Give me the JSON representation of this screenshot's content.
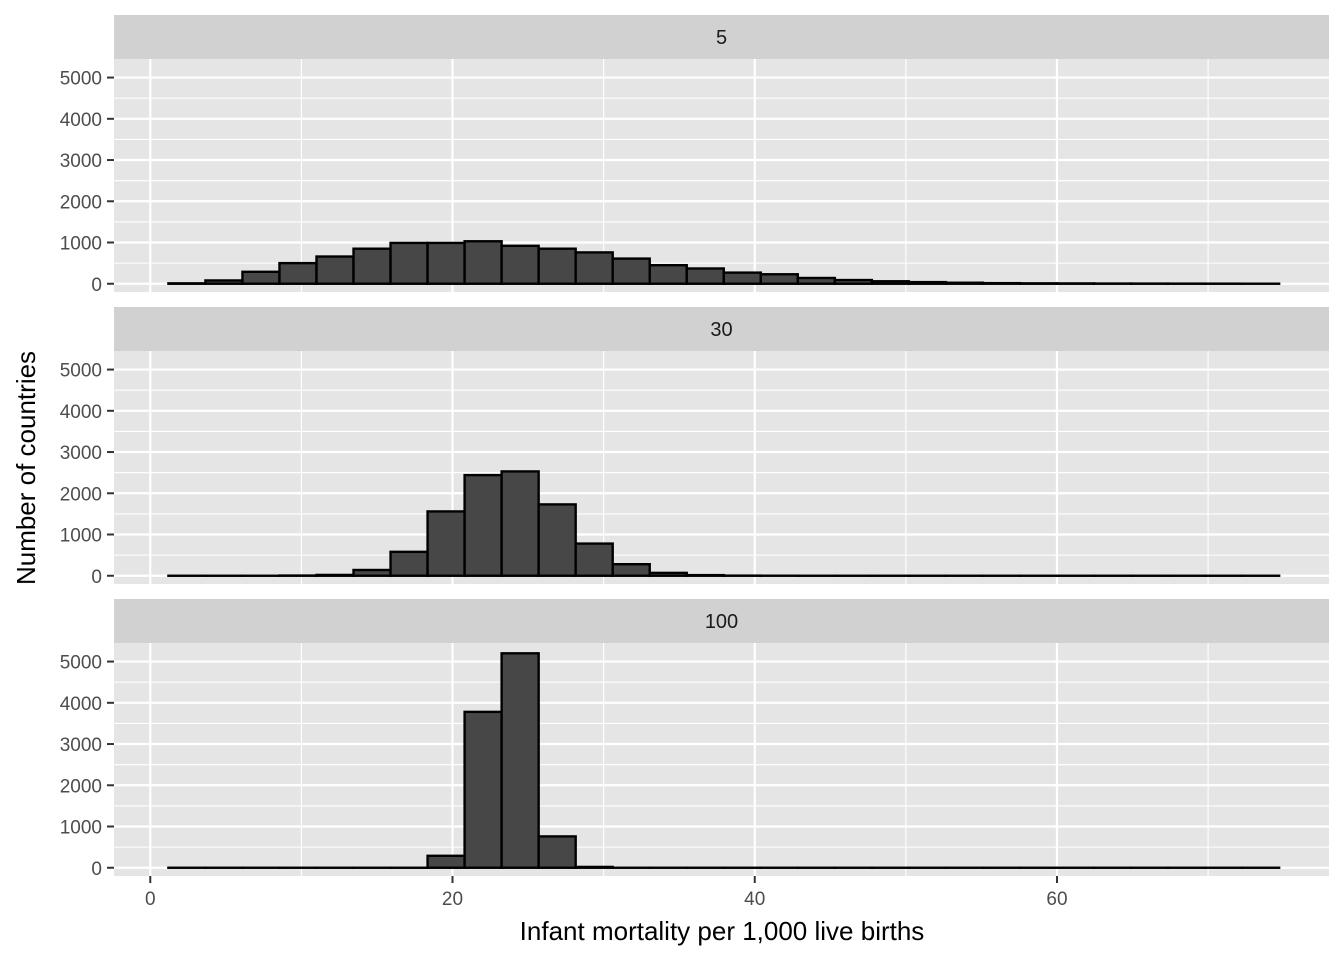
{
  "chart_data": {
    "type": "bar",
    "subtype": "faceted-histogram",
    "xlabel": "Infant mortality per 1,000 live births",
    "ylabel": "Number of countries",
    "x_ticks": [
      0,
      20,
      40,
      60
    ],
    "y_ticks": [
      0,
      1000,
      2000,
      3000,
      4000,
      5000
    ],
    "xlim": [
      -2.4,
      78
    ],
    "ylim": [
      -200,
      5450
    ],
    "bin_width": 2.45,
    "bin_start": 1.2,
    "grid": true,
    "legend": "none",
    "colors": {
      "panel_bg": "#e5e5e5",
      "strip_bg": "#d1d1d1",
      "grid": "#ffffff",
      "bar_fill": "#474747",
      "bar_outline": "#000000"
    },
    "facets": [
      {
        "label": "5",
        "values": [
          10,
          80,
          290,
          500,
          660,
          850,
          990,
          990,
          1030,
          920,
          850,
          760,
          610,
          450,
          370,
          270,
          230,
          140,
          90,
          60,
          40,
          25,
          15,
          10,
          8,
          5,
          4,
          3,
          2,
          1
        ]
      },
      {
        "label": "30",
        "values": [
          0,
          0,
          0,
          5,
          20,
          140,
          580,
          1560,
          2440,
          2530,
          1730,
          780,
          280,
          70,
          15,
          3,
          1,
          0,
          0,
          0,
          0,
          0,
          0,
          0,
          0,
          0,
          0,
          0,
          0,
          0
        ]
      },
      {
        "label": "100",
        "values": [
          0,
          0,
          0,
          0,
          0,
          0,
          0,
          290,
          3780,
          5200,
          760,
          20,
          0,
          0,
          0,
          0,
          0,
          0,
          0,
          0,
          0,
          0,
          0,
          0,
          0,
          0,
          0,
          0,
          0,
          0
        ]
      }
    ]
  }
}
